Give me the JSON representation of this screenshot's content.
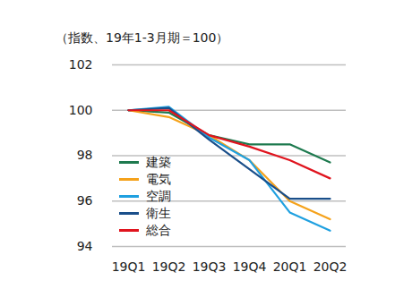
{
  "chart_data": {
    "type": "line",
    "subtitle": "（指数、19年1-3月期＝100）",
    "categories": [
      "19Q1",
      "19Q2",
      "19Q3",
      "19Q4",
      "20Q1",
      "20Q2"
    ],
    "series": [
      {
        "name": "建築",
        "color": "#1e7a4f",
        "values": [
          100,
          99.9,
          98.9,
          98.5,
          98.5,
          97.7
        ]
      },
      {
        "name": "電気",
        "color": "#f5a21b",
        "values": [
          100,
          99.7,
          98.9,
          97.8,
          96.0,
          95.2
        ]
      },
      {
        "name": "空調",
        "color": "#1fa0e0",
        "values": [
          100,
          100.15,
          98.8,
          97.8,
          95.5,
          94.7
        ]
      },
      {
        "name": "衛生",
        "color": "#1a4f8a",
        "values": [
          100,
          100.1,
          98.7,
          97.4,
          96.1,
          96.1
        ]
      },
      {
        "name": "総合",
        "color": "#e0141e",
        "values": [
          100,
          100.0,
          98.9,
          98.4,
          97.8,
          97.0
        ]
      }
    ],
    "ylim": [
      94,
      102
    ],
    "yticks": [
      94,
      96,
      98,
      100,
      102
    ],
    "grid": true,
    "legend": "lower left"
  }
}
